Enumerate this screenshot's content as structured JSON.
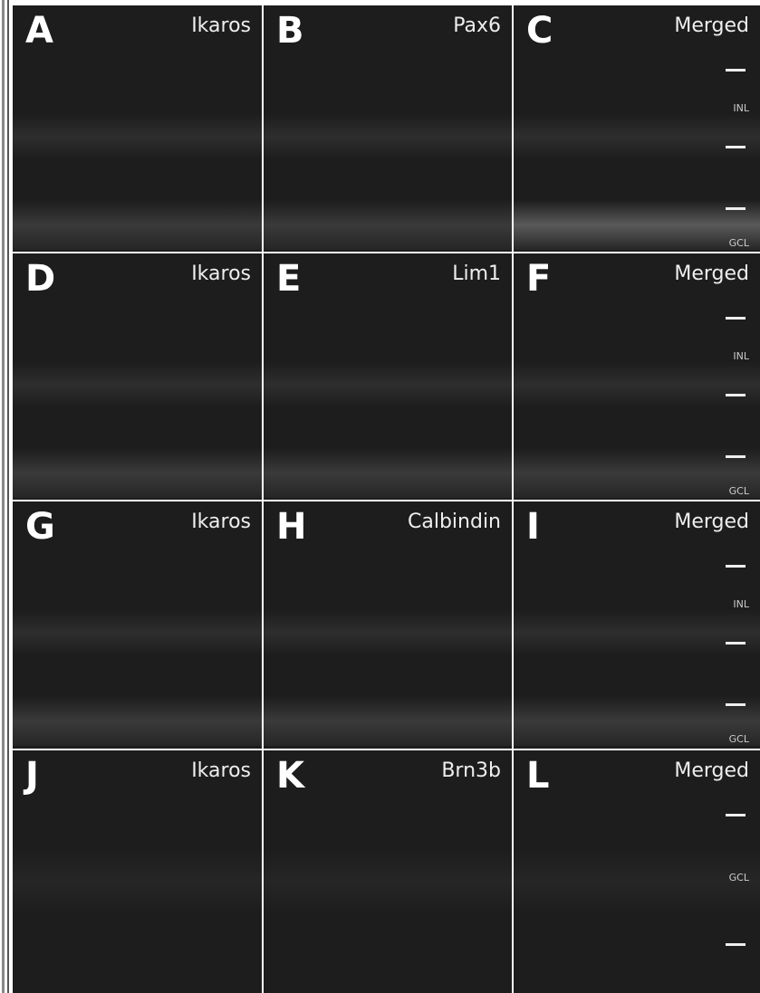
{
  "panels": [
    {
      "letter": "A",
      "label": "Ikaros"
    },
    {
      "letter": "B",
      "label": "Pax6"
    },
    {
      "letter": "C",
      "label": "Merged",
      "layers": [
        "INL",
        "GCL"
      ]
    },
    {
      "letter": "D",
      "label": "Ikaros"
    },
    {
      "letter": "E",
      "label": "Lim1"
    },
    {
      "letter": "F",
      "label": "Merged",
      "layers": [
        "INL",
        "GCL"
      ]
    },
    {
      "letter": "G",
      "label": "Ikaros"
    },
    {
      "letter": "H",
      "label": "Calbindin"
    },
    {
      "letter": "I",
      "label": "Merged",
      "layers": [
        "INL",
        "GCL"
      ]
    },
    {
      "letter": "J",
      "label": "Ikaros"
    },
    {
      "letter": "K",
      "label": "Brn3b"
    },
    {
      "letter": "L",
      "label": "Merged",
      "layers": [
        "GCL"
      ]
    }
  ]
}
